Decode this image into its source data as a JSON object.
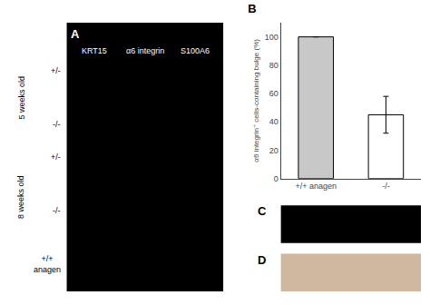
{
  "chart_data": {
    "type": "bar",
    "title": "B",
    "categories": [
      "+/+ anagen",
      "-/-"
    ],
    "values": [
      100,
      45
    ],
    "errors": [
      0,
      13
    ],
    "colors": [
      "#c8c8c8",
      "#ffffff"
    ],
    "ylabel": "α6 integrin⁺ cells-containing bulge (%)",
    "ylim": [
      0,
      110
    ],
    "yticks": [
      0,
      20,
      40,
      60,
      80,
      100
    ],
    "grid": false,
    "annotations": [
      "A",
      "KRT15",
      "α6 integrin",
      "S100A6",
      "+/-",
      "-/-",
      "5 weeks old",
      "8 weeks old",
      "+/-",
      "-/-",
      "+/+\nanagen",
      "C",
      "D"
    ]
  }
}
